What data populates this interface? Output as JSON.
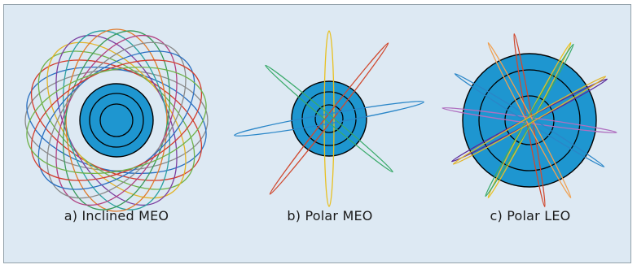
{
  "figure": {
    "background": "#dde9f3",
    "earth_color": "#1e96d0",
    "panels": [
      {
        "key": "inclined_meo",
        "caption": "a) Inclined MEO",
        "orbit_colors": [
          "#8a8a8a",
          "#2a6fc0",
          "#d23c2c",
          "#6fb24a",
          "#e2b429",
          "#7b3fa0",
          "#2aa0a0",
          "#e07a2a",
          "#3a9a5a",
          "#b04080"
        ]
      },
      {
        "key": "polar_meo",
        "caption": "b) Polar MEO",
        "orbit_colors": [
          "#e8c020",
          "#d04a30",
          "#2a86c8",
          "#3aaa6a"
        ]
      },
      {
        "key": "polar_leo",
        "caption": "c) Polar LEO",
        "orbit_colors": [
          "#d04a30",
          "#e8c020",
          "#5a2a9a",
          "#b070c0",
          "#2a86c8",
          "#f0a050",
          "#3aaa6a",
          "#e2b429"
        ]
      }
    ]
  }
}
